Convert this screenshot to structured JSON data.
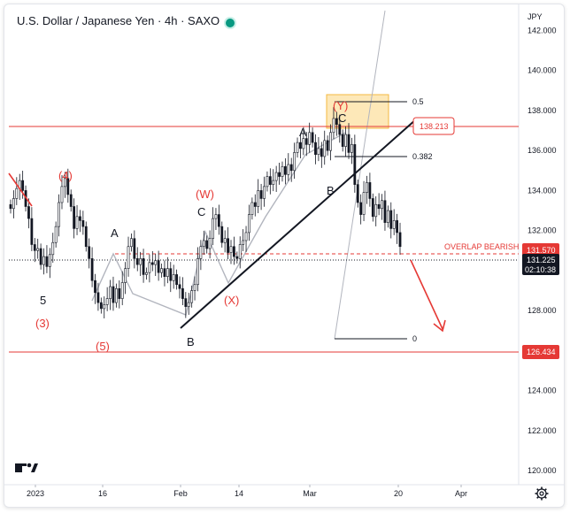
{
  "header": {
    "symbol_name": "U.S. Dollar / Japanese Yen",
    "interval": "4h",
    "exchange": "SAXO",
    "separator": "·"
  },
  "colors": {
    "up": "#089981",
    "down": "#131722",
    "level_red": "#e53935",
    "trendline": "#131722",
    "fib_box": "#fcd97a",
    "last_price_bg": "#e53935",
    "timer_bg": "#131722"
  },
  "chart_data": {
    "type": "candlestick",
    "currency": "JPY",
    "y_ticks": [
      "142.000",
      "140.000",
      "138.000",
      "136.000",
      "134.000",
      "132.000",
      "130.000",
      "128.000",
      "126.000",
      "124.000",
      "122.000",
      "120.000"
    ],
    "ylim": [
      119.3,
      143.3
    ],
    "x_ticks": [
      "2023",
      "16",
      "Feb",
      "14",
      "Mar",
      "20",
      "Apr"
    ],
    "series_close": [
      133.1,
      133.6,
      134.1,
      134.5,
      134.0,
      133.2,
      132.6,
      131.3,
      131.0,
      131.1,
      130.3,
      130.7,
      130.2,
      130.8,
      131.4,
      132.2,
      133.4,
      134.2,
      134.6,
      133.8,
      133.2,
      132.1,
      132.7,
      132.5,
      132.2,
      131.2,
      130.6,
      129.5,
      128.9,
      128.4,
      128.1,
      128.3,
      128.6,
      129.2,
      128.4,
      129.1,
      128.6,
      129.4,
      130.1,
      131.2,
      131.6,
      130.6,
      130.3,
      130.6,
      129.8,
      129.9,
      130.4,
      130.3,
      130.5,
      129.9,
      130.1,
      129.7,
      130.1,
      129.5,
      129.8,
      129.3,
      129.1,
      128.6,
      128.2,
      128.4,
      129.0,
      129.3,
      130.6,
      131.2,
      131.5,
      131.1,
      131.6,
      132.6,
      132.8,
      132.2,
      131.4,
      131.6,
      130.9,
      131.2,
      130.7,
      130.6,
      131.3,
      131.5,
      131.9,
      132.8,
      133.4,
      133.2,
      134.0,
      133.6,
      134.2,
      134.7,
      134.3,
      134.5,
      134.9,
      134.7,
      135.2,
      134.8,
      135.3,
      135.0,
      135.9,
      136.4,
      136.1,
      136.6,
      136.3,
      136.9,
      136.4,
      135.8,
      136.1,
      135.7,
      136.5,
      136.0,
      136.9,
      137.6,
      137.3,
      136.8,
      136.2,
      136.8,
      135.9,
      136.3,
      134.3,
      133.4,
      132.8,
      133.9,
      134.4,
      133.6,
      132.7,
      133.3,
      133.1,
      133.5,
      132.4,
      133.0,
      132.1,
      132.5,
      131.9,
      131.2
    ],
    "last_price": "131.570",
    "current_price": "131.225",
    "timer": "02:10:38",
    "levels": [
      {
        "price": "138.213",
        "color": "red"
      },
      {
        "price": "126.434",
        "color": "red"
      }
    ],
    "fib_levels": [
      {
        "label": "0.5",
        "value": 139.5
      },
      {
        "label": "0.382",
        "value": 136.6
      },
      {
        "label": "0",
        "value": 126.9
      }
    ],
    "annotations": {
      "overlap_text": "OVERLAP BEARISH",
      "waves": [
        "(4)",
        "5",
        "(3)",
        "(5)",
        "A",
        "B",
        "C",
        "(W)",
        "(X)",
        "(Y)",
        "A",
        "B",
        "C"
      ]
    }
  },
  "footer": {
    "settings_icon": "gear-icon"
  }
}
